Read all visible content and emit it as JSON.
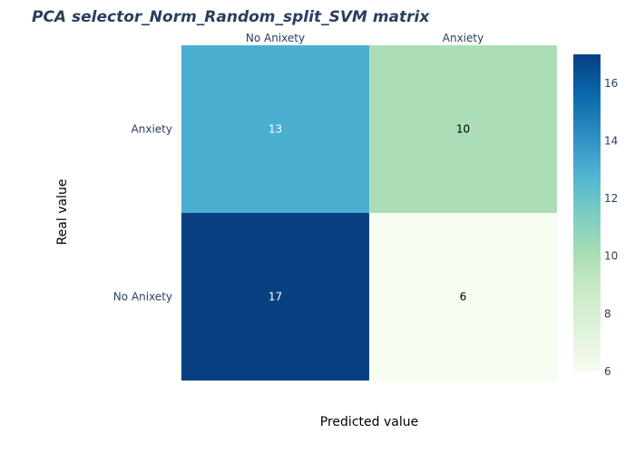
{
  "chart_data": {
    "type": "heatmap",
    "title": "PCA selector_Norm_Random_split_SVM matrix",
    "xlabel": "Predicted value",
    "ylabel": "Real value",
    "x_categories": [
      "No Anixety",
      "Anxiety"
    ],
    "y_categories": [
      "Anxiety",
      "No Anixety"
    ],
    "values": [
      [
        13,
        10
      ],
      [
        17,
        6
      ]
    ],
    "colorscale": "GnBu",
    "zlim": [
      6,
      17
    ],
    "colorbar_ticks": [
      6,
      8,
      10,
      12,
      14,
      16
    ],
    "x_axis_position": "top",
    "grid": false,
    "legend": "colorbar-right"
  }
}
